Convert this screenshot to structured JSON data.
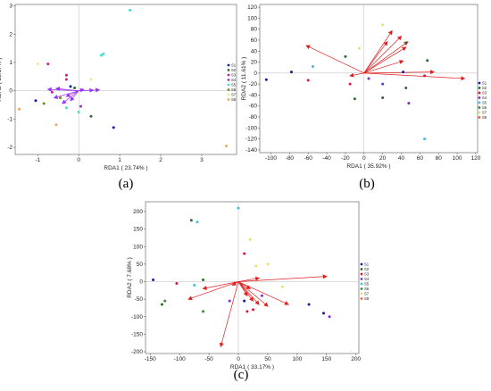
{
  "panels": [
    {
      "id": "a",
      "label": "(a)",
      "xlabel": "RDA1 ( 23.74% )",
      "ylabel": "RDA2 ( 23.17% )",
      "xticks": [
        -1,
        0,
        1,
        2,
        3
      ],
      "yticks": [
        -2,
        -1,
        0,
        1,
        2,
        3
      ],
      "xlim": [
        -1.55,
        3.85
      ],
      "ylim": [
        -2.25,
        3.05
      ],
      "legend": [
        "S1",
        "S2",
        "S3",
        "S4",
        "S5",
        "S6",
        "S7",
        "S8"
      ],
      "colors": [
        "#1a1aa0",
        "#2d6a2d",
        "#d01c8b",
        "#9932cc",
        "#40e0d0",
        "#6b8e23",
        "#f0e68c",
        "#f4a460"
      ],
      "arrow_color": "#9b30ff",
      "arrows": [
        [
          -0.75,
          0.05
        ],
        [
          -0.6,
          -0.25
        ],
        [
          -0.4,
          -0.45
        ],
        [
          -0.2,
          -0.35
        ],
        [
          0.35,
          0.02
        ],
        [
          0.5,
          0.03
        ],
        [
          0.12,
          0.05
        ],
        [
          -0.55,
          0.08
        ],
        [
          -0.3,
          -0.2
        ]
      ],
      "points": [
        {
          "x": 1.25,
          "y": 2.85,
          "s": 4
        },
        {
          "x": 0.6,
          "y": 1.3,
          "s": 4
        },
        {
          "x": 0.55,
          "y": 1.25,
          "s": 4
        },
        {
          "x": -1.0,
          "y": 0.95,
          "s": 6
        },
        {
          "x": -0.75,
          "y": 0.95,
          "s": 2
        },
        {
          "x": -0.3,
          "y": 0.55,
          "s": 2
        },
        {
          "x": -0.3,
          "y": 0.4,
          "s": 2
        },
        {
          "x": -0.2,
          "y": 0.15,
          "s": 0
        },
        {
          "x": -0.1,
          "y": 0.1,
          "s": 1
        },
        {
          "x": 0.3,
          "y": 0.4,
          "s": 6
        },
        {
          "x": -1.05,
          "y": -0.35,
          "s": 0
        },
        {
          "x": -0.85,
          "y": -0.45,
          "s": 5
        },
        {
          "x": -0.3,
          "y": -0.6,
          "s": 4
        },
        {
          "x": 0.05,
          "y": -0.55,
          "s": 3
        },
        {
          "x": 0.0,
          "y": -0.75,
          "s": 4
        },
        {
          "x": -1.45,
          "y": -0.65,
          "s": 7
        },
        {
          "x": -0.55,
          "y": -1.2,
          "s": 7
        },
        {
          "x": 0.3,
          "y": -0.9,
          "s": 1
        },
        {
          "x": 0.85,
          "y": -1.3,
          "s": 0
        },
        {
          "x": 3.6,
          "y": -1.95,
          "s": 7
        },
        {
          "x": -0.65,
          "y": -0.05,
          "s": 2
        },
        {
          "x": -0.45,
          "y": -0.25,
          "s": 5
        }
      ]
    },
    {
      "id": "b",
      "label": "(b)",
      "xlabel": "RDA1 ( 35.92% )",
      "ylabel": "RDA2 ( 11.61% )",
      "xticks": [
        -100,
        -80,
        -60,
        -40,
        -20,
        0,
        20,
        40,
        60,
        80,
        100,
        120
      ],
      "yticks": [
        -140,
        -120,
        -100,
        -80,
        -60,
        -40,
        -20,
        0,
        20,
        40,
        60,
        80,
        100,
        120
      ],
      "xlim": [
        -112,
        122
      ],
      "ylim": [
        -145,
        125
      ],
      "legend": [
        "S1",
        "S2",
        "S3",
        "S4",
        "S5",
        "S6",
        "S7",
        "S8"
      ],
      "colors": [
        "#1a1aa0",
        "#2d6a2d",
        "#e0173b",
        "#7b2fbe",
        "#40c0e0",
        "#3a8a3a",
        "#e8e070",
        "#ff5a36"
      ],
      "arrow_color": "#e02020",
      "arrows": [
        [
          -62,
          50
        ],
        [
          30,
          77
        ],
        [
          40,
          67
        ],
        [
          25,
          57
        ],
        [
          47,
          57
        ],
        [
          45,
          47
        ],
        [
          42,
          22
        ],
        [
          75,
          2
        ],
        [
          108,
          -10
        ],
        [
          -15,
          -5
        ]
      ],
      "points": [
        {
          "x": 20,
          "y": 88,
          "s": 6
        },
        {
          "x": 45,
          "y": 55,
          "s": 1
        },
        {
          "x": -5,
          "y": 45,
          "s": 6
        },
        {
          "x": -20,
          "y": 30,
          "s": 1
        },
        {
          "x": 68,
          "y": 23,
          "s": 1
        },
        {
          "x": 42,
          "y": 2,
          "s": 0
        },
        {
          "x": -55,
          "y": 12,
          "s": 4
        },
        {
          "x": -78,
          "y": 2,
          "s": 0
        },
        {
          "x": -105,
          "y": -12,
          "s": 0
        },
        {
          "x": -60,
          "y": -13,
          "s": 2
        },
        {
          "x": -15,
          "y": -20,
          "s": 2
        },
        {
          "x": 20,
          "y": -20,
          "s": 3
        },
        {
          "x": 45,
          "y": -27,
          "s": 1
        },
        {
          "x": 20,
          "y": -45,
          "s": 1
        },
        {
          "x": -10,
          "y": -47,
          "s": 1
        },
        {
          "x": 48,
          "y": -55,
          "s": 3
        },
        {
          "x": 65,
          "y": -120,
          "s": 4
        },
        {
          "x": 5,
          "y": -10,
          "s": 3
        },
        {
          "x": 65,
          "y": -5,
          "s": 2
        }
      ]
    },
    {
      "id": "c",
      "label": "(c)",
      "xlabel": "RDA1 ( 33.17% )",
      "ylabel": "RDA2 ( 7.68% )",
      "xticks": [
        -150,
        -100,
        -50,
        0,
        50,
        100,
        150,
        200
      ],
      "yticks": [
        -200,
        -150,
        -100,
        -50,
        0,
        50,
        100,
        150,
        200
      ],
      "xlim": [
        -158,
        205
      ],
      "ylim": [
        -205,
        228
      ],
      "legend": [
        "S1",
        "S2",
        "S3",
        "S4",
        "S5",
        "S6",
        "S7",
        "S8"
      ],
      "colors": [
        "#1a1aa0",
        "#2d6a2d",
        "#e0173b",
        "#7b2fbe",
        "#40c0e0",
        "#3a8a3a",
        "#e8e070",
        "#ff5a36"
      ],
      "arrow_color": "#e02020",
      "arrows": [
        [
          -85,
          -50
        ],
        [
          -30,
          -185
        ],
        [
          25,
          -55
        ],
        [
          50,
          -70
        ],
        [
          85,
          -65
        ],
        [
          35,
          -65
        ],
        [
          -60,
          -20
        ],
        [
          20,
          -20
        ],
        [
          150,
          15
        ],
        [
          35,
          10
        ],
        [
          -10,
          -10
        ],
        [
          15,
          -40
        ]
      ],
      "points": [
        {
          "x": 0,
          "y": 210,
          "s": 4
        },
        {
          "x": -80,
          "y": 175,
          "s": 1
        },
        {
          "x": -70,
          "y": 170,
          "s": 4
        },
        {
          "x": 20,
          "y": 120,
          "s": 6
        },
        {
          "x": 10,
          "y": 80,
          "s": 2
        },
        {
          "x": 50,
          "y": 50,
          "s": 6
        },
        {
          "x": 30,
          "y": 45,
          "s": 6
        },
        {
          "x": -145,
          "y": 5,
          "s": 0
        },
        {
          "x": -105,
          "y": -5,
          "s": 2
        },
        {
          "x": -60,
          "y": 5,
          "s": 1
        },
        {
          "x": -130,
          "y": -65,
          "s": 1
        },
        {
          "x": -60,
          "y": -85,
          "s": 5
        },
        {
          "x": -15,
          "y": -55,
          "s": 3
        },
        {
          "x": 10,
          "y": -55,
          "s": 0
        },
        {
          "x": 15,
          "y": -85,
          "s": 2
        },
        {
          "x": 25,
          "y": -80,
          "s": 2
        },
        {
          "x": 40,
          "y": -40,
          "s": 3
        },
        {
          "x": 120,
          "y": -65,
          "s": 0
        },
        {
          "x": 145,
          "y": -90,
          "s": 0
        },
        {
          "x": 155,
          "y": -100,
          "s": 3
        },
        {
          "x": 75,
          "y": -15,
          "s": 6
        },
        {
          "x": -75,
          "y": -10,
          "s": 4
        },
        {
          "x": -125,
          "y": -55,
          "s": 5
        }
      ]
    }
  ]
}
